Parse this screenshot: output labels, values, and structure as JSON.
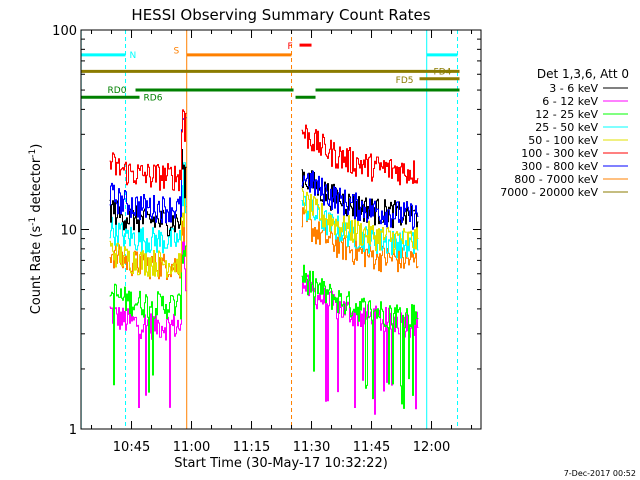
{
  "chart_data": {
    "type": "line",
    "title": "HESSI Observing Summary Count Rates",
    "xlabel": "Start Time (30-May-17 10:32:22)",
    "ylabel_main": "Count Rate (s",
    "ylabel_sup1": "-1",
    "ylabel_mid": " detector",
    "ylabel_sup2": "-1",
    "ylabel_end": ")",
    "yscale": "log",
    "ylim": [
      1,
      100
    ],
    "xlim_min": [
      32.37,
      132.37
    ],
    "x_tick_minutes": [
      45,
      60,
      75,
      90,
      105,
      120
    ],
    "x_tick_labels": [
      "10:45",
      "11:00",
      "11:15",
      "11:30",
      "11:45",
      "12:00"
    ],
    "y_tick_values": [
      1,
      10,
      100
    ],
    "y_tick_labels": [
      "1",
      "10",
      "100"
    ],
    "legend_title": "Det 1,3,6, Att 0",
    "legend_placement": "right",
    "series": [
      {
        "name": "3 - 6 keV",
        "color": "#000000",
        "level_a": 11.0,
        "level_b": 11.5,
        "min_level": 0
      },
      {
        "name": "6 - 12 keV",
        "color": "#ff00ff",
        "level_a": 3.3,
        "level_b": 3.3,
        "min_level": 1.6
      },
      {
        "name": "12 - 25 keV",
        "color": "#00ff00",
        "level_a": 4.2,
        "level_b": 3.6,
        "min_level": 1.8
      },
      {
        "name": "25 - 50 keV",
        "color": "#00ffff",
        "level_a": 8.8,
        "level_b": 8.2,
        "min_level": 0
      },
      {
        "name": "50 - 100 keV",
        "color": "#e0e000",
        "level_a": 6.8,
        "level_b": 8.6,
        "min_level": 0
      },
      {
        "name": "100 - 300 keV",
        "color": "#ff0000",
        "level_a": 18.5,
        "level_b": 19.0,
        "min_level": 0
      },
      {
        "name": "300 - 800 keV",
        "color": "#0000ff",
        "level_a": 12.8,
        "level_b": 11.5,
        "min_level": 0
      },
      {
        "name": "800 - 7000 keV",
        "color": "#ff8000",
        "level_a": 6.6,
        "level_b": 6.8,
        "min_level": 0
      },
      {
        "name": "7000 - 20000 keV",
        "color": "#8b7b00",
        "level_a": 0,
        "level_b": 0,
        "min_level": 0
      }
    ],
    "data_segments_min": [
      [
        39.5,
        58.5
      ],
      [
        87.5,
        116.5
      ]
    ],
    "flag_bars": [
      {
        "label": "N",
        "color": "#00ffff",
        "level": 75,
        "segments": [
          [
            32.4,
            43.5
          ],
          [
            118.8,
            126.5
          ]
        ]
      },
      {
        "label": "S",
        "color": "#ff8000",
        "level": 75,
        "segments": [
          [
            58.8,
            85.0
          ]
        ]
      },
      {
        "label": "F",
        "color": "#ff0000",
        "level": 84,
        "segments": [
          [
            87.0,
            90.0
          ]
        ]
      },
      {
        "label": "FD4",
        "color": "#8b7b00",
        "level": 62,
        "segments": [
          [
            32.4,
            127.0
          ]
        ]
      },
      {
        "label": "FD5",
        "color": "#8b7b00",
        "level": 57,
        "segments": [
          [
            117.0,
            127.0
          ]
        ]
      },
      {
        "label": "RD0",
        "color": "#008000",
        "level": 50,
        "segments": [
          [
            46.0,
            85.5
          ],
          [
            91.0,
            127.0
          ]
        ]
      },
      {
        "label": "RD6",
        "color": "#008000",
        "level": 46,
        "segments": [
          [
            32.4,
            47.0
          ],
          [
            86.0,
            91.0
          ]
        ]
      }
    ],
    "vertical_markers": [
      {
        "minute": 32.4,
        "color": "#00ffff",
        "style": "solid"
      },
      {
        "minute": 43.5,
        "color": "#00ffff",
        "style": "dashed"
      },
      {
        "minute": 58.8,
        "color": "#ff8000",
        "style": "solid"
      },
      {
        "minute": 85.0,
        "color": "#ff8000",
        "style": "dashed"
      },
      {
        "minute": 118.8,
        "color": "#00ffff",
        "style": "solid"
      },
      {
        "minute": 126.5,
        "color": "#00ffff",
        "style": "dashed"
      }
    ]
  },
  "footer": {
    "timestamp": "7-Dec-2017 00:52"
  }
}
